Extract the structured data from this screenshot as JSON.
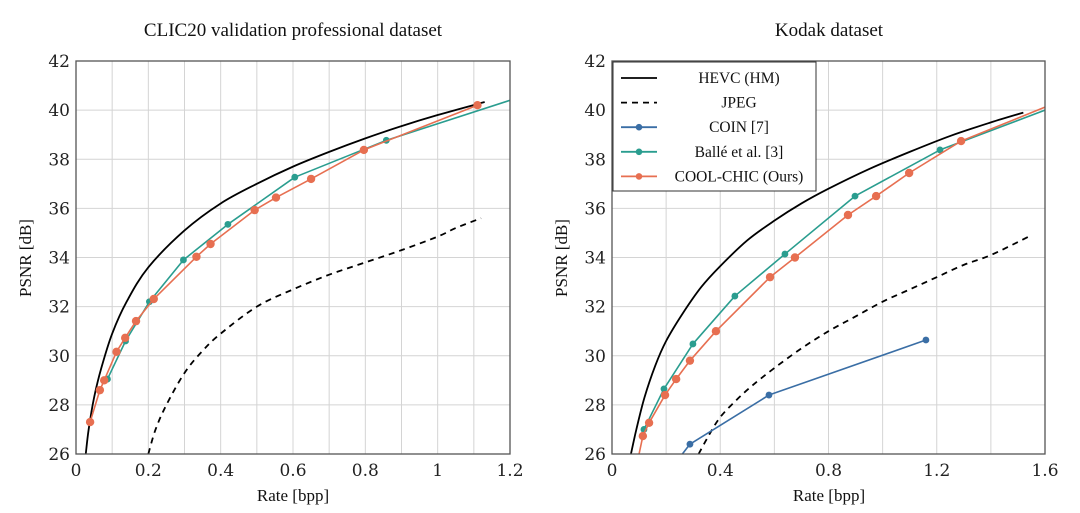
{
  "chart_data": [
    {
      "type": "line",
      "title": "CLIC20 validation professional dataset",
      "xlabel": "Rate [bpp]",
      "ylabel": "PSNR [dB]",
      "xlim": [
        0,
        1.2
      ],
      "ylim": [
        26,
        42
      ],
      "xticks": [
        "0",
        "0.2",
        "0.4",
        "0.6",
        "0.8",
        "1",
        "1.2"
      ],
      "xtick_values": [
        0,
        0.2,
        0.4,
        0.6,
        0.8,
        1.0,
        1.2
      ],
      "xgrid_step": 0.1,
      "yticks": [
        "26",
        "28",
        "30",
        "32",
        "34",
        "36",
        "38",
        "40",
        "42"
      ],
      "ytick_values": [
        26,
        28,
        30,
        32,
        34,
        36,
        38,
        40,
        42
      ],
      "grid": true,
      "legend": null,
      "series": [
        {
          "name": "HEVC (HM)",
          "style": "solid",
          "color": "#000000",
          "markers": false,
          "x": [
            0.027,
            0.035,
            0.05,
            0.07,
            0.1,
            0.14,
            0.2,
            0.3,
            0.4,
            0.5,
            0.6,
            0.7,
            0.8,
            0.9,
            1.0,
            1.13
          ],
          "y": [
            26.0,
            27.0,
            28.3,
            29.5,
            30.9,
            32.2,
            33.6,
            35.1,
            36.2,
            37.0,
            37.7,
            38.3,
            38.85,
            39.35,
            39.8,
            40.33
          ]
        },
        {
          "name": "JPEG",
          "style": "dashed",
          "color": "#000000",
          "markers": false,
          "x": [
            0.2,
            0.22,
            0.25,
            0.3,
            0.35,
            0.4,
            0.5,
            0.6,
            0.7,
            0.8,
            0.9,
            1.0,
            1.05,
            1.12
          ],
          "y": [
            26.0,
            27.0,
            28.0,
            29.3,
            30.2,
            30.9,
            32.0,
            32.7,
            33.3,
            33.8,
            34.3,
            34.85,
            35.2,
            35.6
          ]
        },
        {
          "name": "Ballé et al. [3]",
          "style": "solid",
          "color": "#2a9d8f",
          "markers": true,
          "x": [
            0.087,
            0.137,
            0.203,
            0.297,
            0.42,
            0.605,
            0.858,
            1.2
          ],
          "y": [
            29.05,
            30.6,
            32.2,
            33.9,
            35.35,
            37.27,
            38.77,
            40.4
          ],
          "marker_mask": [
            true,
            true,
            true,
            true,
            true,
            true,
            true,
            false
          ]
        },
        {
          "name": "COOL-CHIC (Ours)",
          "style": "solid",
          "color": "#e76f51",
          "markers": true,
          "x": [
            0.039,
            0.066,
            0.078,
            0.112,
            0.136,
            0.166,
            0.215,
            0.333,
            0.372,
            0.494,
            0.553,
            0.65,
            0.796,
            1.11
          ],
          "y": [
            27.3,
            28.6,
            29.0,
            30.16,
            30.73,
            31.41,
            32.31,
            34.03,
            34.55,
            35.93,
            36.44,
            37.2,
            38.38,
            40.2
          ]
        }
      ]
    },
    {
      "type": "line",
      "title": "Kodak dataset",
      "xlabel": "Rate [bpp]",
      "ylabel": "PSNR [dB]",
      "xlim": [
        0,
        1.6
      ],
      "ylim": [
        26,
        42
      ],
      "xticks": [
        "0",
        "0.4",
        "0.8",
        "1.2",
        "1.6"
      ],
      "xtick_values": [
        0,
        0.4,
        0.8,
        1.2,
        1.6
      ],
      "xgrid_step": 0.2,
      "yticks": [
        "26",
        "28",
        "30",
        "32",
        "34",
        "36",
        "38",
        "40",
        "42"
      ],
      "ytick_values": [
        26,
        28,
        30,
        32,
        34,
        36,
        38,
        40,
        42
      ],
      "grid": true,
      "legend": "top-left",
      "series": [
        {
          "name": "HEVC (HM)",
          "style": "solid",
          "color": "#000000",
          "markers": false,
          "x": [
            0.07,
            0.09,
            0.12,
            0.16,
            0.2,
            0.26,
            0.33,
            0.4,
            0.5,
            0.6,
            0.7,
            0.8,
            0.95,
            1.1,
            1.25,
            1.4,
            1.52
          ],
          "y": [
            26.0,
            27.0,
            28.3,
            29.6,
            30.6,
            31.7,
            32.8,
            33.65,
            34.7,
            35.5,
            36.2,
            36.8,
            37.6,
            38.3,
            38.95,
            39.5,
            39.9
          ]
        },
        {
          "name": "JPEG",
          "style": "dashed",
          "color": "#000000",
          "markers": false,
          "x": [
            0.32,
            0.36,
            0.4,
            0.46,
            0.52,
            0.6,
            0.7,
            0.8,
            0.9,
            1.0,
            1.1,
            1.2,
            1.3,
            1.4,
            1.54
          ],
          "y": [
            26.0,
            26.8,
            27.5,
            28.2,
            28.8,
            29.5,
            30.3,
            31.0,
            31.6,
            32.2,
            32.7,
            33.2,
            33.7,
            34.1,
            34.85
          ]
        },
        {
          "name": "COIN [7]",
          "style": "solid",
          "color": "#3a6ea5",
          "markers": true,
          "x": [
            0.26,
            0.288,
            0.58,
            1.16
          ],
          "y": [
            26.0,
            26.4,
            28.4,
            30.64
          ],
          "marker_mask": [
            false,
            true,
            true,
            true
          ]
        },
        {
          "name": "Ballé et al. [3]",
          "style": "solid",
          "color": "#2a9d8f",
          "markers": true,
          "x": [
            0.118,
            0.192,
            0.299,
            0.454,
            0.639,
            0.898,
            1.212,
            1.6
          ],
          "y": [
            27.0,
            28.65,
            30.48,
            32.43,
            34.14,
            36.5,
            38.38,
            40.0
          ],
          "marker_mask": [
            true,
            true,
            true,
            true,
            true,
            true,
            true,
            false
          ]
        },
        {
          "name": "COOL-CHIC (Ours)",
          "style": "solid",
          "color": "#e76f51",
          "markers": true,
          "x": [
            0.1,
            0.114,
            0.137,
            0.196,
            0.237,
            0.288,
            0.384,
            0.584,
            0.676,
            0.872,
            0.976,
            1.098,
            1.29,
            1.6
          ],
          "y": [
            26.0,
            26.73,
            27.27,
            28.4,
            29.05,
            29.8,
            31.0,
            33.2,
            34.0,
            35.73,
            36.5,
            37.44,
            38.74,
            40.12
          ],
          "marker_mask": [
            false,
            true,
            true,
            true,
            true,
            true,
            true,
            true,
            true,
            true,
            true,
            true,
            true,
            false
          ]
        }
      ]
    }
  ]
}
